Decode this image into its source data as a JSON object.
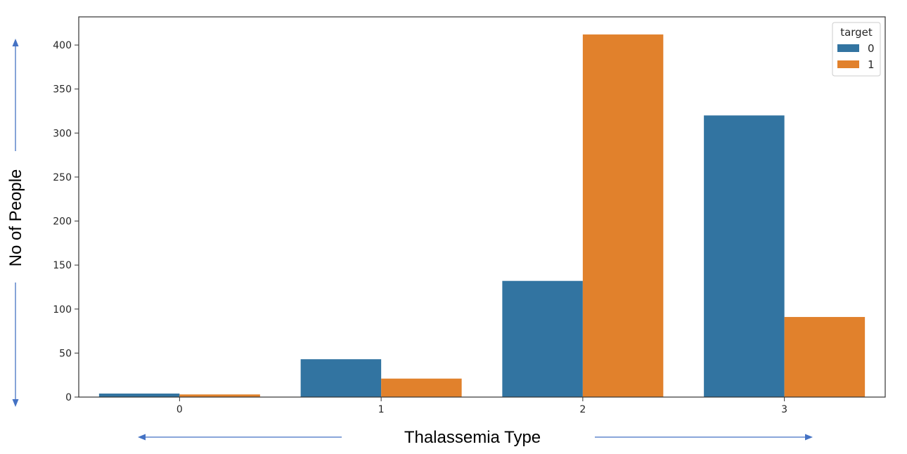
{
  "chart_data": {
    "type": "bar",
    "categories": [
      "0",
      "1",
      "2",
      "3"
    ],
    "series": [
      {
        "name": "0",
        "color": "#3274a1",
        "values": [
          4,
          43,
          132,
          320
        ]
      },
      {
        "name": "1",
        "color": "#e1812c",
        "values": [
          3,
          21,
          412,
          91
        ]
      }
    ],
    "xlabel": "Thalassemia Type",
    "ylabel": "No of People",
    "ylim": [
      0,
      432
    ],
    "yticks": [
      0,
      50,
      100,
      150,
      200,
      250,
      300,
      350,
      400
    ],
    "legend": {
      "title": "target",
      "position": "top-right"
    },
    "grid": false,
    "arrow_color": "#4472c4"
  }
}
